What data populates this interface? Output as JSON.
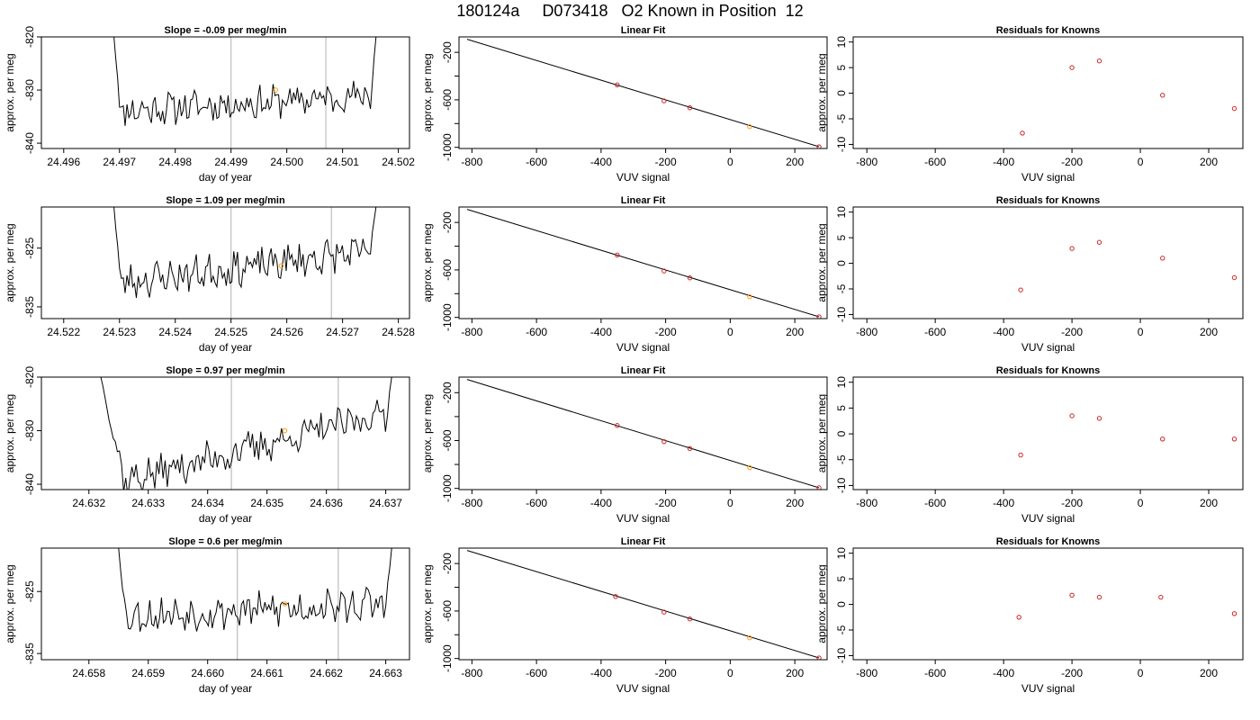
{
  "page": {
    "title_parts": [
      "180124a",
      "D073418",
      "O2 Known in Position  12"
    ]
  },
  "colors": {
    "line": "#000000",
    "gridline": "#bebebe",
    "residual_points": "#cd2626",
    "highlight_point": "#ff9f1a"
  },
  "chart_data": [
    {
      "type": "line",
      "title": "Slope =  -0.09  per meg/min",
      "xlabel": "day of year",
      "ylabel": "approx. per meg",
      "xlim": [
        24.4956,
        24.5022
      ],
      "ylim": [
        -841,
        -820
      ],
      "xticks": [
        24.496,
        24.497,
        24.498,
        24.499,
        24.5,
        24.501,
        24.502
      ],
      "xtick_labels": [
        "24.496",
        "24.497",
        "24.498",
        "24.499",
        "24.500",
        "24.501",
        "24.502"
      ],
      "yticks": [
        -840,
        -830,
        -820
      ],
      "ytick_labels": [
        "-840",
        "-830",
        "-820"
      ],
      "vlines": [
        24.499,
        24.5007
      ],
      "highlight": {
        "x": 24.4998,
        "y": -830
      },
      "trace": {
        "x_start": 24.4969,
        "x_end": 24.5016,
        "y_start": -820,
        "y_end": -820,
        "level_start": -834,
        "level_end": -831,
        "noise": 2.6,
        "drop": 0.00012,
        "rise": 0.0001,
        "seed": 11
      }
    },
    {
      "type": "scatter",
      "title": "Linear Fit",
      "xlabel": "VUV signal",
      "ylabel": "approx. per meg",
      "xlim": [
        -840,
        300
      ],
      "ylim": [
        -1010,
        -70
      ],
      "xticks": [
        -800,
        -600,
        -400,
        -200,
        0,
        200
      ],
      "xtick_labels": [
        "-800",
        "-600",
        "-400",
        "-200",
        "0",
        "200"
      ],
      "yticks": [
        -1000,
        -800,
        -600,
        -400,
        -200
      ],
      "ytick_labels": [
        "-1000",
        "",
        "-600",
        "",
        "-200"
      ],
      "fit_line": {
        "x": [
          -815,
          275
        ],
        "y": [
          -90,
          -995
        ]
      },
      "points": {
        "x": [
          -350,
          -205,
          -125,
          60,
          275
        ],
        "y": [
          -474,
          -609,
          -667,
          -826,
          -995
        ]
      },
      "highlight_index": 3
    },
    {
      "type": "scatter",
      "title": "Residuals for Knowns",
      "xlabel": "VUV signal",
      "ylabel": "approx. per meg",
      "xlim": [
        -840,
        300
      ],
      "ylim": [
        -10.8,
        11
      ],
      "xticks": [
        -800,
        -600,
        -400,
        -200,
        0,
        200
      ],
      "xtick_labels": [
        "-800",
        "-600",
        "-400",
        "-200",
        "0",
        "200"
      ],
      "yticks": [
        -10,
        -5,
        0,
        5,
        10
      ],
      "ytick_labels": [
        "-10",
        "-5",
        "0",
        "5",
        "10"
      ],
      "points": {
        "x": [
          -345,
          -200,
          -120,
          65,
          275
        ],
        "y": [
          -7.8,
          5.0,
          6.3,
          -0.4,
          -3.0
        ]
      }
    },
    {
      "type": "line",
      "title": "Slope =  1.09  per meg/min",
      "xlabel": "day of year",
      "ylabel": "approx. per meg",
      "xlim": [
        24.5216,
        24.5282
      ],
      "ylim": [
        -837,
        -818
      ],
      "xticks": [
        24.522,
        24.523,
        24.524,
        24.525,
        24.526,
        24.527,
        24.528
      ],
      "xtick_labels": [
        "24.522",
        "24.523",
        "24.524",
        "24.525",
        "24.526",
        "24.527",
        "24.528"
      ],
      "yticks": [
        -835,
        -825
      ],
      "ytick_labels": [
        "-835",
        "-825"
      ],
      "vlines": [
        24.525,
        24.5268
      ],
      "highlight": {
        "x": 24.5259,
        "y": -828
      },
      "trace": {
        "x_start": 24.5229,
        "x_end": 24.5276,
        "y_start": -818,
        "y_end": -818,
        "level_start": -831,
        "level_end": -825.5,
        "noise": 2.5,
        "drop": 0.00012,
        "rise": 0.0001,
        "seed": 23
      }
    },
    {
      "type": "scatter",
      "title": "Linear Fit",
      "xlabel": "VUV signal",
      "ylabel": "approx. per meg",
      "xlim": [
        -840,
        300
      ],
      "ylim": [
        -1010,
        -70
      ],
      "xticks": [
        -800,
        -600,
        -400,
        -200,
        0,
        200
      ],
      "xtick_labels": [
        "-800",
        "-600",
        "-400",
        "-200",
        "0",
        "200"
      ],
      "yticks": [
        -1000,
        -800,
        -600,
        -400,
        -200
      ],
      "ytick_labels": [
        "-1000",
        "",
        "-600",
        "",
        "-200"
      ],
      "fit_line": {
        "x": [
          -815,
          275
        ],
        "y": [
          -90,
          -995
        ]
      },
      "points": {
        "x": [
          -350,
          -205,
          -125,
          60,
          275
        ],
        "y": [
          -474,
          -609,
          -667,
          -826,
          -995
        ]
      },
      "highlight_index": 3
    },
    {
      "type": "scatter",
      "title": "Residuals for Knowns",
      "xlabel": "VUV signal",
      "ylabel": "approx. per meg",
      "xlim": [
        -840,
        300
      ],
      "ylim": [
        -10.8,
        11
      ],
      "xticks": [
        -800,
        -600,
        -400,
        -200,
        0,
        200
      ],
      "xtick_labels": [
        "-800",
        "-600",
        "-400",
        "-200",
        "0",
        "200"
      ],
      "yticks": [
        -10,
        -5,
        0,
        5,
        10
      ],
      "ytick_labels": [
        "-10",
        "-5",
        "0",
        "5",
        "10"
      ],
      "points": {
        "x": [
          -350,
          -200,
          -120,
          65,
          275
        ],
        "y": [
          -5.2,
          2.9,
          4.1,
          1.0,
          -2.8
        ]
      }
    },
    {
      "type": "line",
      "title": "Slope =  0.97  per meg/min",
      "xlabel": "day of year",
      "ylabel": "approx. per meg",
      "xlim": [
        24.6312,
        24.6374
      ],
      "ylim": [
        -841,
        -820
      ],
      "xticks": [
        24.632,
        24.633,
        24.634,
        24.635,
        24.636,
        24.637
      ],
      "xtick_labels": [
        "24.632",
        "24.633",
        "24.634",
        "24.635",
        "24.636",
        "24.637"
      ],
      "yticks": [
        -840,
        -830,
        -820
      ],
      "ytick_labels": [
        "-840",
        "-830",
        "-820"
      ],
      "vlines": [
        24.6344,
        24.6362
      ],
      "highlight": {
        "x": 24.6353,
        "y": -830
      },
      "trace": {
        "x_start": 24.6322,
        "x_end": 24.6371,
        "y_start": -820,
        "y_end": -820,
        "level_start": -840.5,
        "level_end": -826.5,
        "noise": 2.8,
        "drop": 0.0004,
        "rise": 0.0001,
        "seed": 37
      }
    },
    {
      "type": "scatter",
      "title": "Linear Fit",
      "xlabel": "VUV signal",
      "ylabel": "approx. per meg",
      "xlim": [
        -840,
        300
      ],
      "ylim": [
        -1010,
        -70
      ],
      "xticks": [
        -800,
        -600,
        -400,
        -200,
        0,
        200
      ],
      "xtick_labels": [
        "-800",
        "-600",
        "-400",
        "-200",
        "0",
        "200"
      ],
      "yticks": [
        -1000,
        -800,
        -600,
        -400,
        -200
      ],
      "ytick_labels": [
        "-1000",
        "",
        "-600",
        "",
        "-200"
      ],
      "fit_line": {
        "x": [
          -815,
          275
        ],
        "y": [
          -90,
          -995
        ]
      },
      "points": {
        "x": [
          -350,
          -205,
          -125,
          60,
          275
        ],
        "y": [
          -474,
          -609,
          -667,
          -826,
          -995
        ]
      },
      "highlight_index": 3
    },
    {
      "type": "scatter",
      "title": "Residuals for Knowns",
      "xlabel": "VUV signal",
      "ylabel": "approx. per meg",
      "xlim": [
        -840,
        300
      ],
      "ylim": [
        -10.8,
        11
      ],
      "xticks": [
        -800,
        -600,
        -400,
        -200,
        0,
        200
      ],
      "xtick_labels": [
        "-800",
        "-600",
        "-400",
        "-200",
        "0",
        "200"
      ],
      "yticks": [
        -10,
        -5,
        0,
        5,
        10
      ],
      "ytick_labels": [
        "-10",
        "-5",
        "0",
        "5",
        "10"
      ],
      "points": {
        "x": [
          -350,
          -200,
          -120,
          65,
          275
        ],
        "y": [
          -4.1,
          3.5,
          3.0,
          -1.0,
          -1.0
        ]
      }
    },
    {
      "type": "line",
      "title": "Slope =  0.6  per meg/min",
      "xlabel": "day of year",
      "ylabel": "approx. per meg",
      "xlim": [
        24.6572,
        24.6634
      ],
      "ylim": [
        -836,
        -818
      ],
      "xticks": [
        24.658,
        24.659,
        24.66,
        24.661,
        24.662,
        24.663
      ],
      "xtick_labels": [
        "24.658",
        "24.659",
        "24.660",
        "24.661",
        "24.662",
        "24.663"
      ],
      "yticks": [
        -835,
        -825
      ],
      "ytick_labels": [
        "-835",
        "-825"
      ],
      "vlines": [
        24.6605,
        24.6622
      ],
      "highlight": {
        "x": 24.6613,
        "y": -827
      },
      "trace": {
        "x_start": 24.6585,
        "x_end": 24.6631,
        "y_start": -818,
        "y_end": -818,
        "level_start": -829,
        "level_end": -827,
        "noise": 2.4,
        "drop": 0.00012,
        "rise": 0.0001,
        "seed": 53
      }
    },
    {
      "type": "scatter",
      "title": "Linear Fit",
      "xlabel": "VUV signal",
      "ylabel": "approx. per meg",
      "xlim": [
        -840,
        300
      ],
      "ylim": [
        -1010,
        -70
      ],
      "xticks": [
        -800,
        -600,
        -400,
        -200,
        0,
        200
      ],
      "xtick_labels": [
        "-800",
        "-600",
        "-400",
        "-200",
        "0",
        "200"
      ],
      "yticks": [
        -1000,
        -800,
        -600,
        -400,
        -200
      ],
      "ytick_labels": [
        "-1000",
        "",
        "-600",
        "",
        "-200"
      ],
      "fit_line": {
        "x": [
          -815,
          275
        ],
        "y": [
          -90,
          -995
        ]
      },
      "points": {
        "x": [
          -355,
          -205,
          -125,
          60,
          275
        ],
        "y": [
          -478,
          -609,
          -667,
          -826,
          -995
        ]
      },
      "highlight_index": 3
    },
    {
      "type": "scatter",
      "title": "Residuals for Knowns",
      "xlabel": "VUV signal",
      "ylabel": "approx. per meg",
      "xlim": [
        -840,
        300
      ],
      "ylim": [
        -10.8,
        11
      ],
      "xticks": [
        -800,
        -600,
        -400,
        -200,
        0,
        200
      ],
      "xtick_labels": [
        "-800",
        "-600",
        "-400",
        "-200",
        "0",
        "200"
      ],
      "yticks": [
        -10,
        -5,
        0,
        5,
        10
      ],
      "ytick_labels": [
        "-10",
        "-5",
        "0",
        "5",
        "10"
      ],
      "points": {
        "x": [
          -355,
          -200,
          -120,
          60,
          275
        ],
        "y": [
          -2.5,
          1.8,
          1.4,
          1.4,
          -1.8
        ]
      }
    }
  ]
}
